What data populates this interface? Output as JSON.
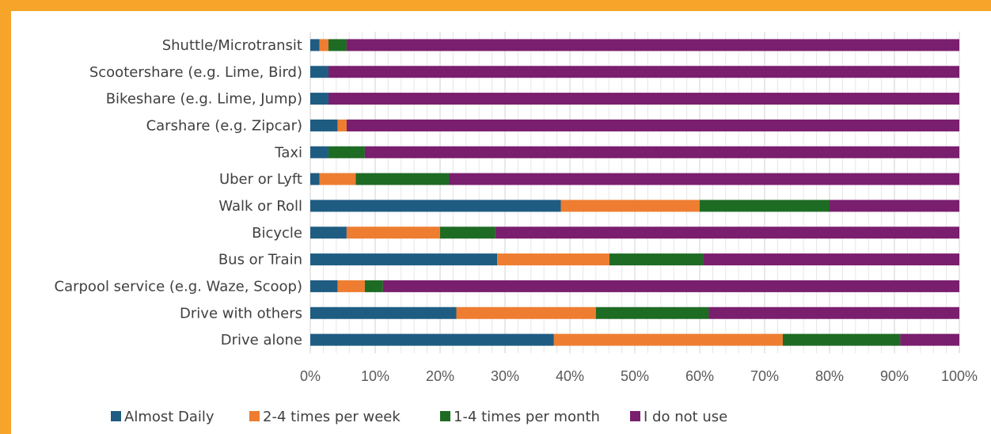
{
  "chart_data": {
    "type": "bar",
    "orientation": "horizontal",
    "stacked": "percent",
    "categories": [
      "Shuttle/Microtransit",
      "Scootershare (e.g. Lime, Bird)",
      "Bikeshare (e.g. Lime, Jump)",
      "Carshare (e.g. Zipcar)",
      "Taxi",
      "Uber or Lyft",
      "Walk or Roll",
      "Bicycle",
      "Bus or Train",
      "Carpool service (e.g. Waze, Scoop)",
      "Drive with others",
      "Drive alone"
    ],
    "series": [
      {
        "name": "Almost Daily",
        "color": "#1f5c82",
        "values": [
          1.4,
          2.8,
          2.8,
          4.2,
          2.8,
          1.4,
          38.6,
          5.6,
          28.8,
          4.2,
          22.5,
          37.5
        ]
      },
      {
        "name": "2-4 times per week",
        "color": "#ee7d31",
        "values": [
          1.4,
          0.0,
          0.0,
          1.4,
          0.0,
          5.6,
          21.4,
          14.4,
          17.3,
          4.2,
          21.5,
          35.3
        ]
      },
      {
        "name": "1-4 times per month",
        "color": "#1e6b24",
        "values": [
          2.8,
          0.0,
          0.0,
          0.0,
          5.6,
          14.4,
          20.0,
          8.5,
          14.4,
          2.8,
          17.4,
          18.1
        ]
      },
      {
        "name": "I do not use",
        "color": "#7a1e6e",
        "values": [
          94.4,
          97.2,
          97.2,
          94.4,
          91.6,
          78.6,
          20.0,
          71.5,
          39.5,
          88.8,
          38.6,
          9.1
        ]
      }
    ],
    "x_ticks": [
      "0%",
      "10%",
      "20%",
      "30%",
      "40%",
      "50%",
      "60%",
      "70%",
      "80%",
      "90%",
      "100%"
    ],
    "xlim": [
      0,
      100
    ],
    "grid": "vertical major and minor",
    "legend_position": "bottom"
  }
}
